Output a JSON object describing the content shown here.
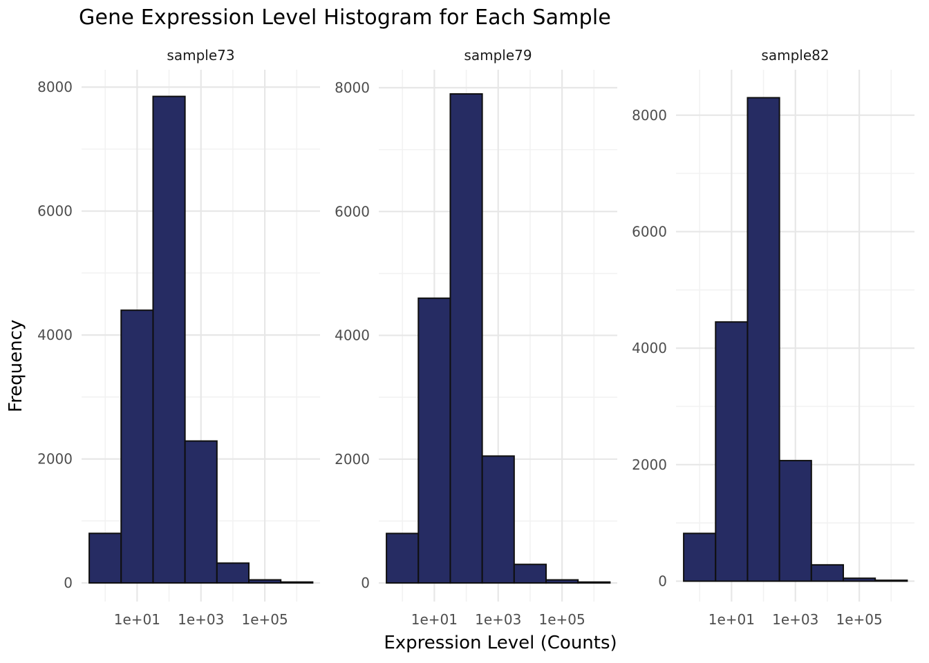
{
  "title": "Gene Expression Level Histogram for Each Sample",
  "chart_data": {
    "type": "bar",
    "subtype": "faceted_histogram",
    "title": "Gene Expression Level Histogram for Each Sample",
    "xlabel": "Expression Level (Counts)",
    "ylabel": "Frequency",
    "x_scale": "log10",
    "x_ticks": [
      {
        "log10": 1,
        "label": "1e+01"
      },
      {
        "log10": 3,
        "label": "1e+03"
      },
      {
        "log10": 5,
        "label": "1e+05"
      }
    ],
    "x_minor_gridline_log10": [
      0,
      2,
      4,
      6
    ],
    "x_domain_log10": [
      -0.74,
      6.73
    ],
    "bin_centers_log10": [
      0,
      1,
      2,
      3,
      4,
      5,
      6
    ],
    "bin_width_decades": 1,
    "grid": "on",
    "legend": "none",
    "panels": [
      {
        "name": "sample73",
        "values": [
          800,
          4400,
          7850,
          2290,
          320,
          50,
          15
        ],
        "y_ticks": [
          0,
          2000,
          4000,
          6000,
          8000
        ],
        "y_minor_ticks": [
          1000,
          3000,
          5000,
          7000
        ],
        "y_domain": [
          -300,
          8280
        ]
      },
      {
        "name": "sample79",
        "values": [
          800,
          4600,
          7900,
          2050,
          300,
          50,
          15
        ],
        "y_ticks": [
          0,
          2000,
          4000,
          6000,
          8000
        ],
        "y_minor_ticks": [
          1000,
          3000,
          5000,
          7000
        ],
        "y_domain": [
          -300,
          8290
        ]
      },
      {
        "name": "sample82",
        "values": [
          820,
          4450,
          8300,
          2070,
          280,
          50,
          15
        ],
        "y_ticks": [
          0,
          2000,
          4000,
          6000,
          8000
        ],
        "y_minor_ticks": [
          1000,
          3000,
          5000,
          7000
        ],
        "y_domain": [
          -350,
          8780
        ]
      }
    ],
    "colors": {
      "bar_fill": "#262c63",
      "bar_stroke": "#0f0f0f",
      "grid_major": "#e7e7e7",
      "grid_minor": "#f2f2f2",
      "tick_label": "#4d4d4d",
      "strip_text": "#1a1a1a",
      "background": "#ffffff"
    }
  }
}
